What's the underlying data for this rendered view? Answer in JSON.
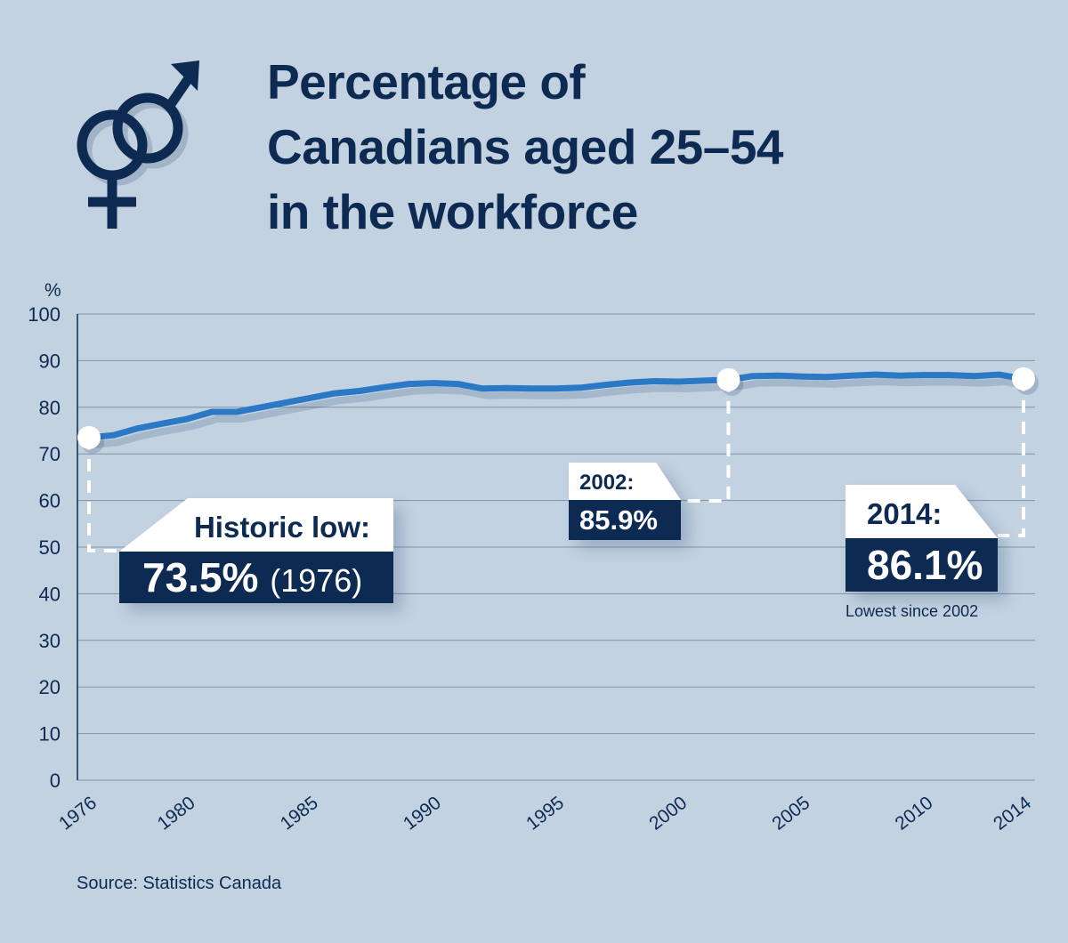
{
  "title_lines": [
    "Percentage of",
    "Canadians aged 25–54",
    "in the workforce"
  ],
  "icon": "male-female-symbols-icon",
  "colors": {
    "background": "#c3d2e1",
    "navy": "#0d2a52",
    "line": "#2b78c5",
    "grid": "#7f93a8"
  },
  "callouts": {
    "historic_low": {
      "label": "Historic low:",
      "value": "73.5%",
      "year": "(1976)"
    },
    "y2002": {
      "label": "2002:",
      "value": "85.9%"
    },
    "y2014": {
      "label": "2014:",
      "value": "86.1%",
      "note": "Lowest since 2002"
    }
  },
  "source": "Source: Statistics Canada",
  "chart_data": {
    "type": "line",
    "title": "Percentage of Canadians aged 25–54 in the workforce",
    "ylabel": "%",
    "ylim": [
      0,
      100
    ],
    "yticks": [
      0,
      10,
      20,
      30,
      40,
      50,
      60,
      70,
      80,
      90,
      100
    ],
    "xticks": [
      1976,
      1980,
      1985,
      1990,
      1995,
      2000,
      2005,
      2010,
      2014
    ],
    "grid": true,
    "series": [
      {
        "x": [
          1976,
          1977,
          1978,
          1979,
          1980,
          1981,
          1982,
          1983,
          1984,
          1985,
          1986,
          1987,
          1988,
          1989,
          1990,
          1991,
          1992,
          1993,
          1994,
          1995,
          1996,
          1997,
          1998,
          1999,
          2000,
          2001,
          2002,
          2003,
          2004,
          2005,
          2006,
          2007,
          2008,
          2009,
          2010,
          2011,
          2012,
          2013,
          2014
        ],
        "y": [
          73.5,
          74.0,
          75.5,
          76.5,
          77.5,
          79.0,
          79.0,
          80.0,
          81.0,
          82.0,
          83.0,
          83.5,
          84.3,
          85.0,
          85.2,
          85.0,
          84.0,
          84.1,
          84.0,
          84.0,
          84.2,
          84.8,
          85.3,
          85.6,
          85.5,
          85.7,
          85.9,
          86.7,
          86.8,
          86.6,
          86.5,
          86.8,
          87.0,
          86.8,
          86.9,
          86.9,
          86.7,
          87.0,
          86.1
        ]
      }
    ],
    "highlights": [
      {
        "x": 1976,
        "y": 73.5
      },
      {
        "x": 2002,
        "y": 85.9
      },
      {
        "x": 2014,
        "y": 86.1
      }
    ]
  }
}
